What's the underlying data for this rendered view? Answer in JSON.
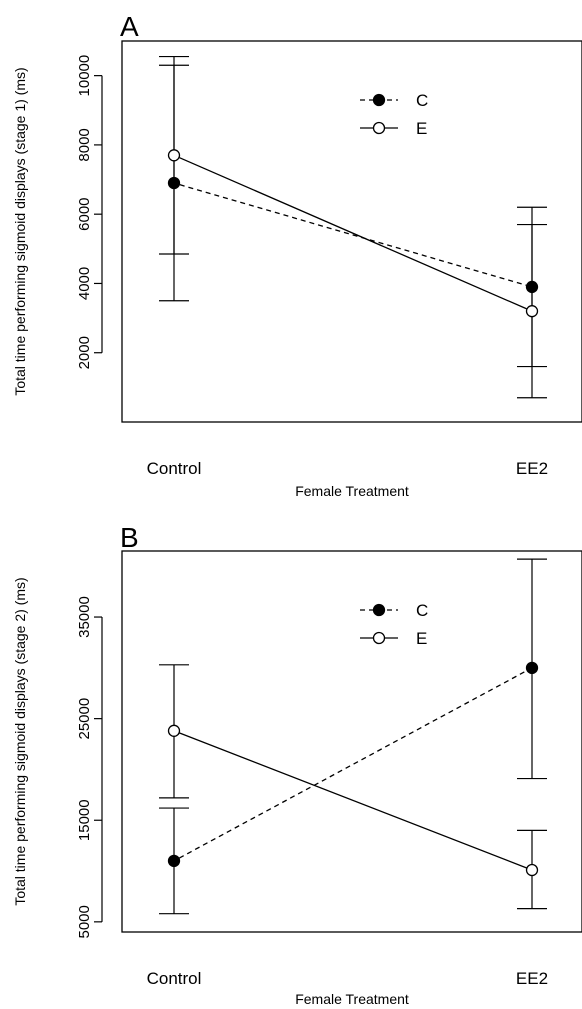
{
  "chart_data": [
    {
      "type": "line",
      "panel_label": "A",
      "categories": [
        "Control",
        "EE2"
      ],
      "xlabel": "Female Treatment",
      "ylabel": "Total time performing sigmoid displays (stage 1) (ms)",
      "ylim": [
        0,
        11000
      ],
      "yticks": [
        2000,
        4000,
        6000,
        8000,
        10000
      ],
      "legend_position": "top-center",
      "series": [
        {
          "name": "C",
          "marker": "filled-circle",
          "line": "dashed",
          "values": [
            6900,
            3900
          ],
          "err_low": [
            3500,
            700
          ],
          "err_high": [
            10300,
            5700
          ]
        },
        {
          "name": "E",
          "marker": "open-circle",
          "line": "solid",
          "values": [
            7700,
            3200
          ],
          "err_low": [
            4850,
            1600
          ],
          "err_high": [
            10550,
            6200
          ]
        }
      ]
    },
    {
      "type": "line",
      "panel_label": "B",
      "categories": [
        "Control",
        "EE2"
      ],
      "xlabel": "Female Treatment",
      "ylabel": "Total time performing sigmoid displays (stage 2) (ms)",
      "ylim": [
        4000,
        41500
      ],
      "yticks": [
        5000,
        15000,
        25000,
        35000
      ],
      "legend_position": "top-center",
      "series": [
        {
          "name": "C",
          "marker": "filled-circle",
          "line": "dashed",
          "values": [
            11000,
            30000
          ],
          "err_low": [
            5800,
            19100
          ],
          "err_high": [
            16200,
            40700
          ]
        },
        {
          "name": "E",
          "marker": "open-circle",
          "line": "solid",
          "values": [
            23800,
            10100
          ],
          "err_low": [
            17200,
            6300
          ],
          "err_high": [
            30300,
            14000
          ]
        }
      ]
    }
  ]
}
